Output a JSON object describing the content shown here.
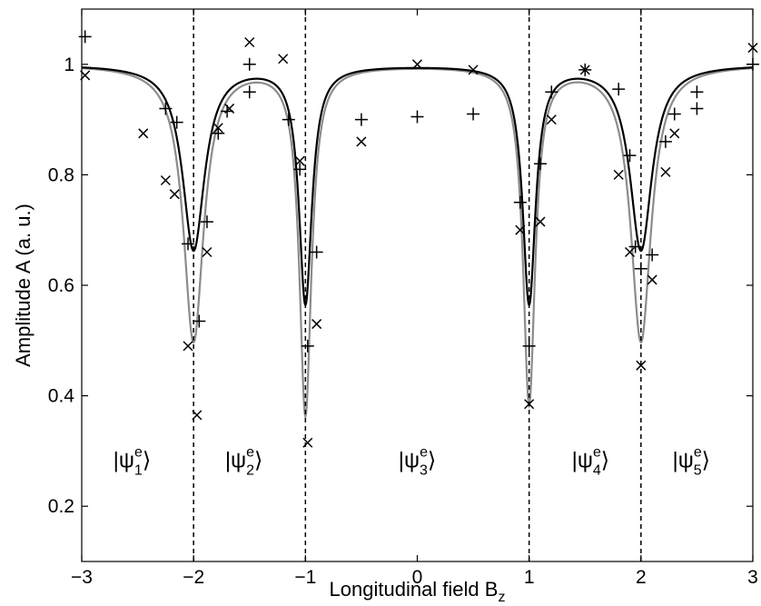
{
  "chart_data": {
    "type": "line",
    "xlabel": "Longitudinal field B",
    "xlabel_sub": "z",
    "ylabel": "Amplitude A (a. u.)",
    "xlim": [
      -3,
      3
    ],
    "ylim": [
      0.1,
      1.1
    ],
    "xticks": [
      -3,
      -2,
      -1,
      0,
      1,
      2,
      3
    ],
    "xtick_labels": [
      "−3",
      "−2",
      "−1",
      "0",
      "1",
      "2",
      "3"
    ],
    "yticks": [
      0.2,
      0.4,
      0.6,
      0.8,
      1.0
    ],
    "ytick_labels": [
      "0.2",
      "0.4",
      "0.6",
      "0.8",
      "1"
    ],
    "grid": false,
    "vlines": [
      -2,
      -1,
      1,
      2
    ],
    "region_labels": [
      {
        "x": -2.55,
        "y": 0.27,
        "sub": "1",
        "sup": "e",
        "psi": "ψ"
      },
      {
        "x": -1.55,
        "y": 0.27,
        "sub": "2",
        "sup": "e",
        "psi": "ψ"
      },
      {
        "x": 0.0,
        "y": 0.27,
        "sub": "3",
        "sup": "e",
        "psi": "ψ"
      },
      {
        "x": 1.55,
        "y": 0.27,
        "sub": "4",
        "sup": "e",
        "psi": "ψ"
      },
      {
        "x": 2.45,
        "y": 0.27,
        "sub": "5",
        "sup": "e",
        "psi": "ψ"
      }
    ],
    "curves": [
      {
        "color": "#000000",
        "baseline": 1.0,
        "dips": [
          {
            "center": -2,
            "depth": 0.335,
            "width": 0.12
          },
          {
            "center": -1,
            "depth": 0.43,
            "width": 0.07
          },
          {
            "center": 1,
            "depth": 0.43,
            "width": 0.07
          },
          {
            "center": 2,
            "depth": 0.335,
            "width": 0.12
          }
        ]
      },
      {
        "color": "#8c8c8c",
        "baseline": 1.0,
        "dips": [
          {
            "center": -2,
            "depth": 0.5,
            "width": 0.11
          },
          {
            "center": -1,
            "depth": 0.63,
            "width": 0.065
          },
          {
            "center": 1,
            "depth": 0.61,
            "width": 0.065
          },
          {
            "center": 2,
            "depth": 0.5,
            "width": 0.11
          }
        ]
      }
    ],
    "series": [
      {
        "marker": "plus",
        "points": [
          [
            -2.97,
            1.05
          ],
          [
            -2.25,
            0.92
          ],
          [
            -2.15,
            0.895
          ],
          [
            -2.05,
            0.675
          ],
          [
            -1.95,
            0.535
          ],
          [
            -1.88,
            0.715
          ],
          [
            -1.78,
            0.875
          ],
          [
            -1.7,
            0.915
          ],
          [
            -1.5,
            1.0
          ],
          [
            -1.5,
            0.95
          ],
          [
            -1.15,
            0.9
          ],
          [
            -1.05,
            0.81
          ],
          [
            -0.98,
            0.49
          ],
          [
            -0.9,
            0.66
          ],
          [
            -0.5,
            0.9
          ],
          [
            0.0,
            0.905
          ],
          [
            0.5,
            0.91
          ],
          [
            0.92,
            0.75
          ],
          [
            1.0,
            0.49
          ],
          [
            1.1,
            0.82
          ],
          [
            1.2,
            0.95
          ],
          [
            1.5,
            0.99
          ],
          [
            1.8,
            0.955
          ],
          [
            1.9,
            0.835
          ],
          [
            1.95,
            0.67
          ],
          [
            2.0,
            0.63
          ],
          [
            2.1,
            0.655
          ],
          [
            2.22,
            0.86
          ],
          [
            2.3,
            0.91
          ],
          [
            2.5,
            0.95
          ],
          [
            2.5,
            0.92
          ],
          [
            3.0,
            1.0
          ]
        ]
      },
      {
        "marker": "x",
        "points": [
          [
            -2.97,
            0.98
          ],
          [
            -2.45,
            0.875
          ],
          [
            -2.25,
            0.79
          ],
          [
            -2.17,
            0.765
          ],
          [
            -2.05,
            0.49
          ],
          [
            -1.97,
            0.365
          ],
          [
            -1.88,
            0.66
          ],
          [
            -1.78,
            0.885
          ],
          [
            -1.68,
            0.92
          ],
          [
            -1.5,
            1.04
          ],
          [
            -1.2,
            1.01
          ],
          [
            -1.05,
            0.825
          ],
          [
            -0.98,
            0.315
          ],
          [
            -0.9,
            0.53
          ],
          [
            -0.5,
            0.86
          ],
          [
            0.0,
            1.0
          ],
          [
            0.5,
            0.99
          ],
          [
            0.92,
            0.7
          ],
          [
            1.0,
            0.385
          ],
          [
            1.1,
            0.715
          ],
          [
            1.2,
            0.9
          ],
          [
            1.5,
            0.99
          ],
          [
            1.8,
            0.8
          ],
          [
            1.9,
            0.66
          ],
          [
            2.0,
            0.455
          ],
          [
            2.1,
            0.61
          ],
          [
            2.22,
            0.805
          ],
          [
            2.3,
            0.875
          ],
          [
            3.0,
            1.03
          ]
        ]
      }
    ]
  }
}
